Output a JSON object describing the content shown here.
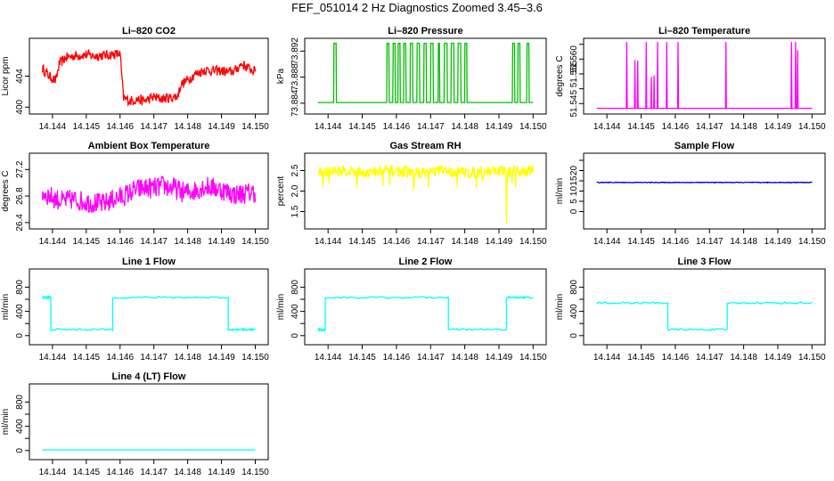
{
  "figure": {
    "title": "FEF_051014  2 Hz Diagnostics Zoomed 3.45–3.6"
  },
  "chart_data": [
    {
      "id": "co2",
      "type": "line",
      "title": "Li–820 CO2",
      "ylabel": "Licor ppm",
      "color": "#ff0000",
      "xlim": [
        14.1436,
        14.1501
      ],
      "xticks": [
        "14.144",
        "14.145",
        "14.146",
        "14.147",
        "14.148",
        "14.149",
        "14.150"
      ],
      "ylim": [
        399.5,
        408.5
      ],
      "yticks": [
        400,
        404
      ],
      "ytick_labels": [
        "400",
        "404"
      ],
      "x": [
        14.1437,
        14.1439,
        14.1441,
        14.1442,
        14.1444,
        14.1446,
        14.1448,
        14.145,
        14.1452,
        14.1455,
        14.1458,
        14.146,
        14.1461,
        14.1463,
        14.1465,
        14.1467,
        14.147,
        14.1472,
        14.1475,
        14.1477,
        14.1478,
        14.148,
        14.1482,
        14.1485,
        14.1487,
        14.149,
        14.1492,
        14.1494,
        14.1496,
        14.1498,
        14.15
      ],
      "y": [
        405.0,
        404.0,
        403.4,
        405.6,
        406.4,
        406.6,
        406.7,
        406.8,
        406.6,
        406.7,
        406.8,
        406.9,
        401.2,
        400.8,
        401.0,
        400.8,
        401.3,
        401.1,
        401.2,
        401.4,
        402.9,
        403.5,
        404.2,
        404.8,
        404.7,
        404.7,
        404.5,
        404.7,
        405.6,
        405.0,
        404.6
      ]
    },
    {
      "id": "pressure",
      "type": "line",
      "title": "Li–820 Pressure",
      "ylabel": "kPa",
      "color": "#00c000",
      "xlim": [
        14.1436,
        14.1501
      ],
      "xticks": [
        "14.144",
        "14.145",
        "14.146",
        "14.147",
        "14.148",
        "14.149",
        "14.150"
      ],
      "ylim": [
        73.8828,
        73.8935
      ],
      "yticks": [
        73.884,
        73.888,
        73.892
      ],
      "ytick_labels": [
        "73.884",
        "73.888",
        "73.892"
      ],
      "baseline": 73.8841,
      "high": 73.8932,
      "high_intervals": [
        [
          14.14417,
          14.14424
        ],
        [
          14.14572,
          14.14578
        ],
        [
          14.1459,
          14.14596
        ],
        [
          14.14605,
          14.14611
        ],
        [
          14.14622,
          14.14628
        ],
        [
          14.1464,
          14.14648
        ],
        [
          14.1466,
          14.14668
        ],
        [
          14.1468,
          14.14688
        ],
        [
          14.147,
          14.14708
        ],
        [
          14.14722,
          14.14726
        ],
        [
          14.1474,
          14.14748
        ],
        [
          14.1476,
          14.14768
        ],
        [
          14.1478,
          14.14788
        ],
        [
          14.148,
          14.14806
        ],
        [
          14.1494,
          14.14946
        ],
        [
          14.14955,
          14.14962
        ],
        [
          14.14982,
          14.14988
        ]
      ]
    },
    {
      "id": "temperature",
      "type": "line",
      "title": "Li–820 Temperature",
      "ylabel": "degrees C",
      "color": "#ff00ff",
      "xlim": [
        14.1436,
        14.1501
      ],
      "xticks": [
        "14.144",
        "14.145",
        "14.146",
        "14.147",
        "14.148",
        "14.149",
        "14.150"
      ],
      "ylim": [
        51.5425,
        51.566
      ],
      "yticks": [
        51.545,
        51.55,
        51.555,
        51.56,
        51.565
      ],
      "ytick_labels": [
        "51.545",
        "",
        "51.555",
        "51.560",
        ""
      ],
      "baseline": 51.5434,
      "spikes": [
        [
          14.14458,
          51.5658
        ],
        [
          14.14482,
          51.5597
        ],
        [
          14.1449,
          51.5595
        ],
        [
          14.14515,
          51.5658
        ],
        [
          14.1453,
          51.554
        ],
        [
          14.14538,
          51.5545
        ],
        [
          14.14548,
          51.5658
        ],
        [
          14.14575,
          51.5658
        ],
        [
          14.14608,
          51.5658
        ],
        [
          14.14748,
          51.5658
        ],
        [
          14.1494,
          51.5658
        ],
        [
          14.14952,
          51.5658
        ],
        [
          14.14958,
          51.563
        ]
      ]
    },
    {
      "id": "ambient",
      "type": "line",
      "title": "Ambient Box Temperature",
      "ylabel": "degrees C",
      "color": "#ff00ff",
      "xlim": [
        14.1436,
        14.1501
      ],
      "xticks": [
        "14.144",
        "14.145",
        "14.146",
        "14.147",
        "14.148",
        "14.149",
        "14.150"
      ],
      "ylim": [
        26.35,
        27.4
      ],
      "yticks": [
        26.4,
        26.8,
        27.2
      ],
      "ytick_labels": [
        "26.4",
        "26.8",
        "27.2"
      ],
      "x": [
        14.1437,
        14.144,
        14.1443,
        14.1446,
        14.1449,
        14.1452,
        14.1455,
        14.1458,
        14.1461,
        14.1464,
        14.1467,
        14.147,
        14.1473,
        14.1476,
        14.1479,
        14.1482,
        14.1485,
        14.1488,
        14.1491,
        14.1494,
        14.1497,
        14.15
      ],
      "y": [
        26.85,
        26.78,
        26.72,
        26.75,
        26.72,
        26.7,
        26.68,
        26.75,
        26.8,
        26.88,
        26.92,
        26.92,
        26.95,
        26.92,
        26.85,
        26.88,
        26.95,
        26.92,
        26.88,
        26.82,
        26.84,
        26.86
      ]
    },
    {
      "id": "rh",
      "type": "line",
      "title": "Gas Stream RH",
      "ylabel": "percent",
      "color": "#ffff00",
      "xlim": [
        14.1436,
        14.1501
      ],
      "xticks": [
        "14.144",
        "14.145",
        "14.146",
        "14.147",
        "14.148",
        "14.149",
        "14.150"
      ],
      "ylim": [
        1.15,
        2.85
      ],
      "yticks": [
        1.5,
        2.0,
        2.5
      ],
      "ytick_labels": [
        "1.5",
        "2.0",
        "2.5"
      ],
      "x": [
        14.1437,
        14.1441,
        14.1445,
        14.1449,
        14.1453,
        14.1457,
        14.1461,
        14.1465,
        14.1469,
        14.1473,
        14.1477,
        14.1481,
        14.1485,
        14.1489,
        14.1493,
        14.1497,
        14.15
      ],
      "y": [
        2.45,
        2.48,
        2.5,
        2.47,
        2.45,
        2.5,
        2.48,
        2.45,
        2.46,
        2.5,
        2.47,
        2.45,
        2.48,
        2.5,
        2.46,
        2.48,
        2.52
      ],
      "dip": [
        14.14922,
        1.2
      ]
    },
    {
      "id": "sample_flow",
      "type": "line",
      "title": "Sample Flow",
      "ylabel": "ml/min",
      "color": "#0000d0",
      "xlim": [
        14.1436,
        14.1501
      ],
      "xticks": [
        "14.144",
        "14.145",
        "14.146",
        "14.147",
        "14.148",
        "14.149",
        "14.150"
      ],
      "ylim": [
        -7,
        27
      ],
      "yticks": [
        0,
        5,
        10,
        15,
        20,
        25
      ],
      "ytick_labels": [
        "0",
        "5",
        "10",
        "15",
        "20",
        ""
      ],
      "level": 14.2
    },
    {
      "id": "line1",
      "type": "line",
      "title": "Line 1 Flow",
      "ylabel": "ml/min",
      "color": "#00ffff",
      "xlim": [
        14.1436,
        14.1501
      ],
      "xticks": [
        "14.144",
        "14.145",
        "14.146",
        "14.147",
        "14.148",
        "14.149",
        "14.150"
      ],
      "ylim": [
        -100,
        1050
      ],
      "yticks": [
        0,
        200,
        400,
        600,
        800
      ],
      "ytick_labels": [
        "0",
        "",
        "400",
        "",
        "800"
      ],
      "steps": [
        [
          14.1437,
          630
        ],
        [
          14.14395,
          100
        ],
        [
          14.14578,
          630
        ],
        [
          14.1492,
          100
        ],
        [
          14.15,
          100
        ]
      ]
    },
    {
      "id": "line2",
      "type": "line",
      "title": "Line 2 Flow",
      "ylabel": "ml/min",
      "color": "#00ffff",
      "xlim": [
        14.1436,
        14.1501
      ],
      "xticks": [
        "14.144",
        "14.145",
        "14.146",
        "14.147",
        "14.148",
        "14.149",
        "14.150"
      ],
      "ylim": [
        -100,
        1050
      ],
      "yticks": [
        0,
        200,
        400,
        600,
        800
      ],
      "ytick_labels": [
        "0",
        "",
        "400",
        "",
        "800"
      ],
      "steps": [
        [
          14.1437,
          100
        ],
        [
          14.14392,
          630
        ],
        [
          14.14752,
          100
        ],
        [
          14.14922,
          630
        ],
        [
          14.15,
          630
        ]
      ]
    },
    {
      "id": "line3",
      "type": "line",
      "title": "Line 3 Flow",
      "ylabel": "ml/min",
      "color": "#00ffff",
      "xlim": [
        14.1436,
        14.1501
      ],
      "xticks": [
        "14.144",
        "14.145",
        "14.146",
        "14.147",
        "14.148",
        "14.149",
        "14.150"
      ],
      "ylim": [
        -100,
        1050
      ],
      "yticks": [
        0,
        200,
        400,
        600,
        800
      ],
      "ytick_labels": [
        "0",
        "",
        "400",
        "",
        "800"
      ],
      "steps": [
        [
          14.1437,
          540
        ],
        [
          14.14578,
          100
        ],
        [
          14.14752,
          540
        ],
        [
          14.15,
          540
        ]
      ]
    },
    {
      "id": "line4",
      "type": "line",
      "title": "Line 4 (LT) Flow",
      "ylabel": "ml/min",
      "color": "#00ffff",
      "xlim": [
        14.1436,
        14.1501
      ],
      "xticks": [
        "14.144",
        "14.145",
        "14.146",
        "14.147",
        "14.148",
        "14.149",
        "14.150"
      ],
      "ylim": [
        -100,
        1050
      ],
      "yticks": [
        0,
        200,
        400,
        600,
        800
      ],
      "ytick_labels": [
        "0",
        "",
        "400",
        "",
        "800"
      ],
      "level": 10
    }
  ]
}
